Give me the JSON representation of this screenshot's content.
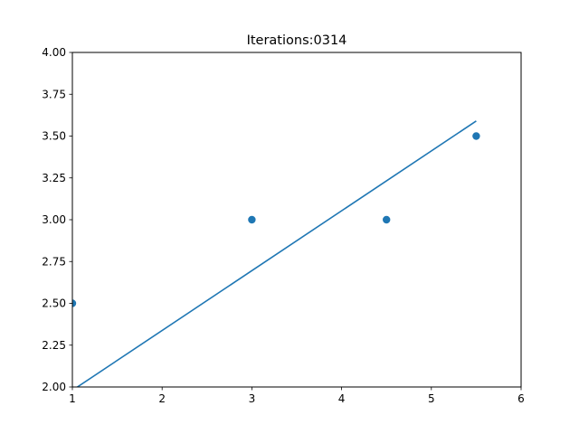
{
  "chart_data": {
    "type": "scatter",
    "title": "Iterations:0314",
    "xlabel": "",
    "ylabel": "",
    "xlim": [
      1,
      6
    ],
    "ylim": [
      2.0,
      4.0
    ],
    "x_ticks": [
      1,
      2,
      3,
      4,
      5,
      6
    ],
    "x_tick_labels": [
      "1",
      "2",
      "3",
      "4",
      "5",
      "6"
    ],
    "y_ticks": [
      2.0,
      2.25,
      2.5,
      2.75,
      3.0,
      3.25,
      3.5,
      3.75,
      4.0
    ],
    "y_tick_labels": [
      "2.00",
      "2.25",
      "2.50",
      "2.75",
      "3.00",
      "3.25",
      "3.50",
      "3.75",
      "4.00"
    ],
    "grid": false,
    "points": {
      "x": [
        1,
        3,
        4.5,
        5.5
      ],
      "y": [
        2.5,
        3.0,
        3.0,
        3.5
      ]
    },
    "fit_line": {
      "x": [
        1,
        5.5
      ],
      "y": [
        1.98,
        3.59
      ]
    },
    "color": "#1f77b4"
  }
}
